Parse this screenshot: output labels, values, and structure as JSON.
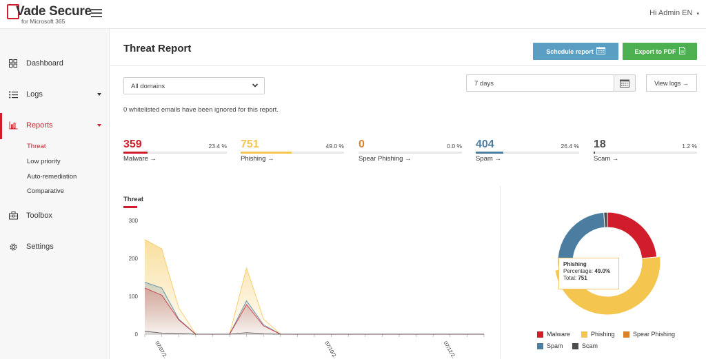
{
  "app": {
    "logo_main": "Vade Secure",
    "logo_sub": "for Microsoft 365",
    "user_greeting": "Hi Admin EN"
  },
  "colors": {
    "brand_red": "#d01c2b",
    "malware": "#d01c2b",
    "phishing": "#f4c54f",
    "spear_phishing": "#d9822b",
    "spam": "#4a7da0",
    "scam": "#4d4d4d",
    "schedule_button": "#5b9ec4",
    "export_button": "#4caf50"
  },
  "sidebar": {
    "items": [
      {
        "label": "Dashboard",
        "icon": "grid-icon"
      },
      {
        "label": "Logs",
        "icon": "list-icon"
      },
      {
        "label": "Reports",
        "icon": "bar-chart-icon"
      },
      {
        "label": "Toolbox",
        "icon": "toolbox-icon"
      },
      {
        "label": "Settings",
        "icon": "gear-icon"
      }
    ],
    "reports_sub": [
      "Threat",
      "Low priority",
      "Auto-remediation",
      "Comparative"
    ]
  },
  "header": {
    "title": "Threat Report",
    "schedule_label": "Schedule report",
    "export_label": "Export to PDF"
  },
  "filters": {
    "domain_selected": "All domains",
    "date_range": "7 days",
    "view_logs_label": "View logs →",
    "note": "0 whitelisted emails have been ignored for this report."
  },
  "stats": [
    {
      "value": "359",
      "percent": "23.4 %",
      "label": "Malware →",
      "ratio": 0.234,
      "color": "#d01c2b"
    },
    {
      "value": "751",
      "percent": "49.0 %",
      "label": "Phishing →",
      "ratio": 0.49,
      "color": "#f4c54f"
    },
    {
      "value": "0",
      "percent": "0.0 %",
      "label": "Spear Phishing →",
      "ratio": 0.0,
      "color": "#d9822b"
    },
    {
      "value": "404",
      "percent": "26.4 %",
      "label": "Spam →",
      "ratio": 0.264,
      "color": "#4a7da0"
    },
    {
      "value": "18",
      "percent": "1.2 %",
      "label": "Scam →",
      "ratio": 0.012,
      "color": "#4d4d4d"
    }
  ],
  "chart_data": [
    {
      "type": "area",
      "title": "Threat",
      "y_ticks": [
        0,
        100,
        200,
        300
      ],
      "ylim": [
        0,
        300
      ],
      "x_tick_labels": [
        "07/07/2...",
        "07/10/2...",
        "07/12/2..."
      ],
      "x_index": [
        0,
        1,
        2,
        3,
        4,
        5,
        6,
        7,
        8,
        9,
        10,
        11,
        12,
        13,
        14,
        15,
        16,
        17,
        18,
        19,
        20
      ],
      "series": [
        {
          "color": "#f4c54f",
          "values": [
            250,
            225,
            70,
            0,
            0,
            0,
            175,
            40,
            0,
            0,
            0,
            0,
            0,
            0,
            0,
            0,
            0,
            0,
            0,
            0,
            0
          ]
        },
        {
          "color": "#4a7da0",
          "values": [
            137,
            122,
            40,
            0,
            0,
            0,
            88,
            25,
            0,
            0,
            0,
            0,
            0,
            0,
            0,
            0,
            0,
            0,
            0,
            0,
            0
          ]
        },
        {
          "color": "#d01c2b",
          "values": [
            122,
            103,
            38,
            0,
            0,
            0,
            78,
            22,
            0,
            0,
            0,
            0,
            0,
            0,
            0,
            0,
            0,
            0,
            0,
            0,
            0
          ]
        },
        {
          "color": "#4d4d4d",
          "values": [
            8,
            3,
            2,
            0,
            0,
            0,
            4,
            1,
            0,
            0,
            0,
            0,
            0,
            0,
            0,
            0,
            0,
            0,
            0,
            0,
            0
          ]
        }
      ]
    },
    {
      "type": "pie",
      "variant": "donut",
      "labels": [
        "Malware",
        "Phishing",
        "Spear Phishing",
        "Spam",
        "Scam"
      ],
      "values": [
        359,
        751,
        0,
        404,
        18
      ],
      "colors": [
        "#d01c2b",
        "#f4c54f",
        "#d9822b",
        "#4a7da0",
        "#4d4d4d"
      ],
      "highlighted": "Phishing",
      "legend_position": "bottom"
    }
  ],
  "tooltip": {
    "title": "Phishing",
    "percentage_label": "Percentage:",
    "percentage_value": "49.0%",
    "total_label": "Total:",
    "total_value": "751"
  }
}
